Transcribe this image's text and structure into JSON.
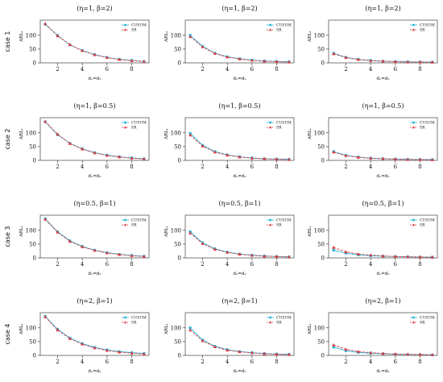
{
  "figure": {
    "row_labels": [
      "case 1",
      "case 2",
      "case 3",
      "case 4"
    ]
  },
  "chart_data": [
    {
      "type": "line",
      "title": "(η=1,  β=2)",
      "xlabel": "d₁=d₂",
      "ylabel": "ARL₁",
      "xticks": [
        2,
        4,
        6,
        8
      ],
      "yticks": [
        0,
        50,
        100
      ],
      "xlim": [
        0.6,
        9.4
      ],
      "ylim": [
        0,
        155
      ],
      "legend": "top-right",
      "grid": false,
      "x": [
        1,
        2,
        3,
        4,
        5,
        6,
        7,
        8,
        9
      ],
      "series": [
        {
          "name": "CUSUM",
          "color": "#29b6d8",
          "marker": "square",
          "dash": "solid",
          "values": [
            140,
            100,
            65,
            45,
            30,
            20,
            13,
            9,
            5
          ]
        },
        {
          "name": "SR",
          "color": "#e0383e",
          "marker": "triangle",
          "dash": "dashed",
          "values": [
            142,
            98,
            66,
            44,
            29,
            19,
            12,
            8,
            5
          ]
        }
      ]
    },
    {
      "type": "line",
      "title": "(η=1,  β=2)",
      "xlabel": "d₁=d₂",
      "ylabel": "ARL₁",
      "xticks": [
        2,
        4,
        6,
        8
      ],
      "yticks": [
        0,
        50,
        100
      ],
      "xlim": [
        0.6,
        9.4
      ],
      "ylim": [
        0,
        155
      ],
      "legend": "top-right",
      "grid": false,
      "x": [
        1,
        2,
        3,
        4,
        5,
        6,
        7,
        8,
        9
      ],
      "series": [
        {
          "name": "CUSUM",
          "color": "#29b6d8",
          "marker": "square",
          "dash": "solid",
          "values": [
            100,
            60,
            35,
            22,
            15,
            10,
            7,
            5,
            4
          ]
        },
        {
          "name": "SR",
          "color": "#e0383e",
          "marker": "triangle",
          "dash": "dashed",
          "values": [
            95,
            58,
            34,
            21,
            14,
            9,
            6,
            4,
            3
          ]
        }
      ]
    },
    {
      "type": "line",
      "title": "(η=1,  β=2)",
      "xlabel": "d₁=d₂",
      "ylabel": "ARL₁",
      "xticks": [
        2,
        4,
        6,
        8
      ],
      "yticks": [
        0,
        50,
        100
      ],
      "xlim": [
        0.6,
        9.4
      ],
      "ylim": [
        0,
        155
      ],
      "legend": "top-right",
      "grid": false,
      "x": [
        1,
        2,
        3,
        4,
        5,
        6,
        7,
        8,
        9
      ],
      "series": [
        {
          "name": "CUSUM",
          "color": "#29b6d8",
          "marker": "square",
          "dash": "solid",
          "values": [
            35,
            20,
            13,
            9,
            6,
            5,
            4,
            3,
            3
          ]
        },
        {
          "name": "SR",
          "color": "#e0383e",
          "marker": "triangle",
          "dash": "dashed",
          "values": [
            33,
            19,
            12,
            8,
            6,
            4,
            3,
            3,
            2
          ]
        }
      ]
    },
    {
      "type": "line",
      "title": "(η=1,  β=0.5)",
      "xlabel": "d₁=d₂",
      "ylabel": "ARL₁",
      "xticks": [
        2,
        4,
        6,
        8
      ],
      "yticks": [
        0,
        50,
        100
      ],
      "xlim": [
        0.6,
        9.4
      ],
      "ylim": [
        0,
        155
      ],
      "legend": "top-right",
      "grid": false,
      "x": [
        1,
        2,
        3,
        4,
        5,
        6,
        7,
        8,
        9
      ],
      "series": [
        {
          "name": "CUSUM",
          "color": "#29b6d8",
          "marker": "square",
          "dash": "solid",
          "values": [
            140,
            93,
            62,
            42,
            28,
            19,
            13,
            9,
            6
          ]
        },
        {
          "name": "SR",
          "color": "#e0383e",
          "marker": "triangle",
          "dash": "dashed",
          "values": [
            141,
            95,
            61,
            41,
            27,
            18,
            12,
            8,
            5
          ]
        }
      ]
    },
    {
      "type": "line",
      "title": "(η=1,  β=0.5)",
      "xlabel": "d₁=d₂",
      "ylabel": "ARL₁",
      "xticks": [
        2,
        4,
        6,
        8
      ],
      "yticks": [
        0,
        50,
        100
      ],
      "xlim": [
        0.6,
        9.4
      ],
      "ylim": [
        0,
        155
      ],
      "legend": "top-right",
      "grid": false,
      "x": [
        1,
        2,
        3,
        4,
        5,
        6,
        7,
        8,
        9
      ],
      "series": [
        {
          "name": "CUSUM",
          "color": "#29b6d8",
          "marker": "square",
          "dash": "solid",
          "values": [
            98,
            55,
            32,
            20,
            13,
            9,
            6,
            5,
            4
          ]
        },
        {
          "name": "SR",
          "color": "#e0383e",
          "marker": "triangle",
          "dash": "dashed",
          "values": [
            92,
            52,
            30,
            19,
            12,
            8,
            6,
            4,
            3
          ]
        }
      ]
    },
    {
      "type": "line",
      "title": "(η=1,  β=0.5)",
      "xlabel": "d₁=d₂",
      "ylabel": "ARL₁",
      "xticks": [
        2,
        4,
        6,
        8
      ],
      "yticks": [
        0,
        50,
        100
      ],
      "xlim": [
        0.6,
        9.4
      ],
      "ylim": [
        0,
        155
      ],
      "legend": "top-right",
      "grid": false,
      "x": [
        1,
        2,
        3,
        4,
        5,
        6,
        7,
        8,
        9
      ],
      "series": [
        {
          "name": "CUSUM",
          "color": "#29b6d8",
          "marker": "square",
          "dash": "solid",
          "values": [
            32,
            18,
            12,
            8,
            6,
            5,
            4,
            3,
            3
          ]
        },
        {
          "name": "SR",
          "color": "#e0383e",
          "marker": "triangle",
          "dash": "dashed",
          "values": [
            30,
            17,
            11,
            8,
            6,
            4,
            3,
            3,
            2
          ]
        }
      ]
    },
    {
      "type": "line",
      "title": "(η=0.5,  β=1)",
      "xlabel": "d₁=d₂",
      "ylabel": "ARL₁",
      "xticks": [
        2,
        4,
        6,
        8
      ],
      "yticks": [
        0,
        50,
        100
      ],
      "xlim": [
        0.6,
        9.4
      ],
      "ylim": [
        0,
        155
      ],
      "legend": "top-right",
      "grid": false,
      "x": [
        1,
        2,
        3,
        4,
        5,
        6,
        7,
        8,
        9
      ],
      "series": [
        {
          "name": "CUSUM",
          "color": "#29b6d8",
          "marker": "square",
          "dash": "solid",
          "values": [
            142,
            95,
            62,
            42,
            28,
            19,
            13,
            9,
            6
          ]
        },
        {
          "name": "SR",
          "color": "#e0383e",
          "marker": "triangle",
          "dash": "dashed",
          "values": [
            140,
            93,
            60,
            40,
            27,
            18,
            12,
            8,
            5
          ]
        }
      ]
    },
    {
      "type": "line",
      "title": "(η=0.5,  β=1)",
      "xlabel": "d₁=d₂",
      "ylabel": "ARL₁",
      "xticks": [
        2,
        4,
        6,
        8
      ],
      "yticks": [
        0,
        50,
        100
      ],
      "xlim": [
        0.6,
        9.4
      ],
      "ylim": [
        0,
        155
      ],
      "legend": "top-right",
      "grid": false,
      "x": [
        1,
        2,
        3,
        4,
        5,
        6,
        7,
        8,
        9
      ],
      "series": [
        {
          "name": "CUSUM",
          "color": "#29b6d8",
          "marker": "square",
          "dash": "solid",
          "values": [
            95,
            55,
            33,
            21,
            14,
            10,
            7,
            5,
            4
          ]
        },
        {
          "name": "SR",
          "color": "#e0383e",
          "marker": "triangle",
          "dash": "dashed",
          "values": [
            90,
            52,
            31,
            20,
            13,
            9,
            6,
            5,
            3
          ]
        }
      ]
    },
    {
      "type": "line",
      "title": "(η=0.5,  β=1)",
      "xlabel": "d₁=d₂",
      "ylabel": "ARL₁",
      "xticks": [
        2,
        4,
        6,
        8
      ],
      "yticks": [
        0,
        50,
        100
      ],
      "xlim": [
        0.6,
        9.4
      ],
      "ylim": [
        0,
        155
      ],
      "legend": "top-right",
      "grid": false,
      "x": [
        1,
        2,
        3,
        4,
        5,
        6,
        7,
        8,
        9
      ],
      "series": [
        {
          "name": "CUSUM",
          "color": "#29b6d8",
          "marker": "square",
          "dash": "solid",
          "values": [
            28,
            17,
            11,
            8,
            6,
            5,
            4,
            3,
            3
          ]
        },
        {
          "name": "SR",
          "color": "#e0383e",
          "marker": "triangle",
          "dash": "dashed",
          "values": [
            38,
            22,
            14,
            10,
            7,
            5,
            4,
            3,
            2
          ]
        }
      ]
    },
    {
      "type": "line",
      "title": "(η=2,  β=1)",
      "xlabel": "d₁=d₂",
      "ylabel": "ARL₁",
      "xticks": [
        2,
        4,
        6,
        8
      ],
      "yticks": [
        0,
        50,
        100
      ],
      "xlim": [
        0.6,
        9.4
      ],
      "ylim": [
        0,
        155
      ],
      "legend": "top-right",
      "grid": false,
      "x": [
        1,
        2,
        3,
        4,
        5,
        6,
        7,
        8,
        9
      ],
      "series": [
        {
          "name": "CUSUM",
          "color": "#29b6d8",
          "marker": "square",
          "dash": "solid",
          "values": [
            142,
            95,
            63,
            43,
            29,
            20,
            14,
            10,
            7
          ]
        },
        {
          "name": "SR",
          "color": "#e0383e",
          "marker": "triangle",
          "dash": "dashed",
          "values": [
            140,
            92,
            61,
            41,
            27,
            18,
            12,
            8,
            5
          ]
        }
      ]
    },
    {
      "type": "line",
      "title": "(η=2,  β=1)",
      "xlabel": "d₁=d₂",
      "ylabel": "ARL₁",
      "xticks": [
        2,
        4,
        6,
        8
      ],
      "yticks": [
        0,
        50,
        100
      ],
      "xlim": [
        0.6,
        9.4
      ],
      "ylim": [
        0,
        155
      ],
      "legend": "top-right",
      "grid": false,
      "x": [
        1,
        2,
        3,
        4,
        5,
        6,
        7,
        8,
        9
      ],
      "series": [
        {
          "name": "CUSUM",
          "color": "#29b6d8",
          "marker": "square",
          "dash": "solid",
          "values": [
            100,
            56,
            33,
            21,
            14,
            10,
            7,
            5,
            4
          ]
        },
        {
          "name": "SR",
          "color": "#e0383e",
          "marker": "triangle",
          "dash": "dashed",
          "values": [
            92,
            53,
            31,
            19,
            13,
            9,
            6,
            4,
            3
          ]
        }
      ]
    },
    {
      "type": "line",
      "title": "(η=2,  β=1)",
      "xlabel": "d₁=d₂",
      "ylabel": "ARL₁",
      "xticks": [
        2,
        4,
        6,
        8
      ],
      "yticks": [
        0,
        50,
        100
      ],
      "xlim": [
        0.6,
        9.4
      ],
      "ylim": [
        0,
        155
      ],
      "legend": "top-right",
      "grid": false,
      "x": [
        1,
        2,
        3,
        4,
        5,
        6,
        7,
        8,
        9
      ],
      "series": [
        {
          "name": "CUSUM",
          "color": "#29b6d8",
          "marker": "square",
          "dash": "solid",
          "values": [
            30,
            17,
            11,
            8,
            6,
            4,
            3,
            3,
            2
          ]
        },
        {
          "name": "SR",
          "color": "#e0383e",
          "marker": "triangle",
          "dash": "dashed",
          "values": [
            38,
            22,
            14,
            10,
            7,
            5,
            4,
            3,
            2
          ]
        }
      ]
    }
  ]
}
